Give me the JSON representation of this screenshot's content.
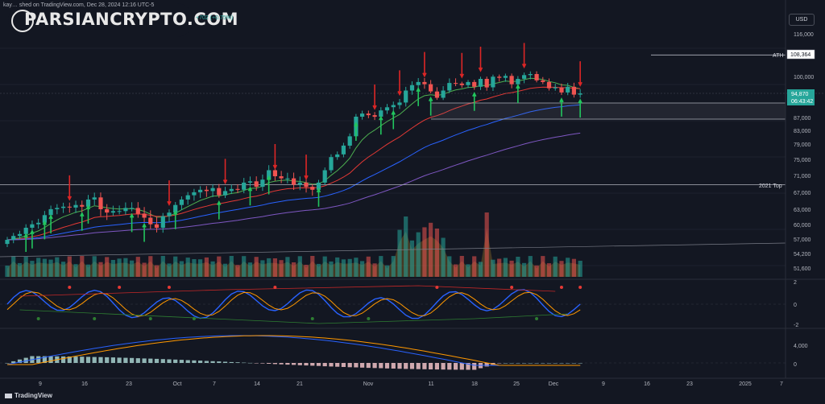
{
  "header": {
    "title": "kay… shed on TradingView.com, Dec 28, 2024 12:16 UTC-5",
    "change": "+702 (+0.75%)"
  },
  "watermark": "PARSIANCRYPTO.COM",
  "currency_button": "USD",
  "footer_brand": "TradingView",
  "price_axis": {
    "ticks": [
      "116,000",
      "100,000",
      "87,000",
      "83,000",
      "79,000",
      "75,000",
      "71,000",
      "67,000",
      "63,000",
      "60,000",
      "57,000",
      "54,200",
      "51,600"
    ]
  },
  "date_axis": {
    "ticks": [
      "9",
      "16",
      "23",
      "Oct",
      "7",
      "14",
      "21",
      "Nov",
      "11",
      "18",
      "25",
      "Dec",
      "9",
      "16",
      "23",
      "2025",
      "7"
    ]
  },
  "levels": {
    "ath_label": "ATH",
    "ath_value": "108,364",
    "top2021_label": "2021 Top",
    "current_price": "94,870",
    "countdown": "06:43:42"
  },
  "oscillator_axis": {
    "ticks": [
      "2",
      "0",
      "-2"
    ]
  },
  "macd_axis": {
    "ticks": [
      "4,000",
      "0"
    ]
  },
  "colors": {
    "background": "#131722",
    "up": "#26a69a",
    "down": "#ef5350",
    "arrow_up": "#22c55e",
    "arrow_down": "#dc2626",
    "ema_fast": "#4caf50",
    "ema_mid": "#e53935",
    "ema_slow": "#2962ff",
    "ema_slowest": "#7e57c2"
  },
  "chart_data": {
    "type": "line",
    "series": [
      {
        "values": [
          57000,
          57800,
          58200,
          59500,
          60200,
          60500,
          62000,
          63200,
          63500,
          63800,
          63600,
          64200,
          63800,
          65500,
          66000,
          63200,
          62500,
          62800,
          62800,
          63500,
          63500,
          62300,
          61500,
          60200,
          59500,
          61800,
          62500,
          64200,
          65500,
          66500,
          67200,
          67800,
          67500,
          68200,
          66500,
          67500,
          68000,
          67800,
          69500,
          69800,
          68500,
          70200,
          72500,
          71000,
          70500,
          70500,
          69000,
          69500,
          68500,
          67800,
          69500,
          72500,
          75800,
          76500,
          78800,
          81500,
          87500,
          88500,
          88000,
          87500,
          89500,
          90500,
          91200,
          92000,
          95800,
          97500,
          98500,
          97800,
          95500,
          93500,
          95800,
          98200,
          98000,
          97500,
          98500,
          97000,
          99500,
          96800,
          100200,
          99800,
          100500,
          97800,
          99500,
          100800,
          101200,
          99000,
          98500,
          96500,
          96800,
          95200,
          97000,
          94500,
          94870
        ]
      }
    ],
    "ylim": [
      51600,
      116000
    ]
  }
}
